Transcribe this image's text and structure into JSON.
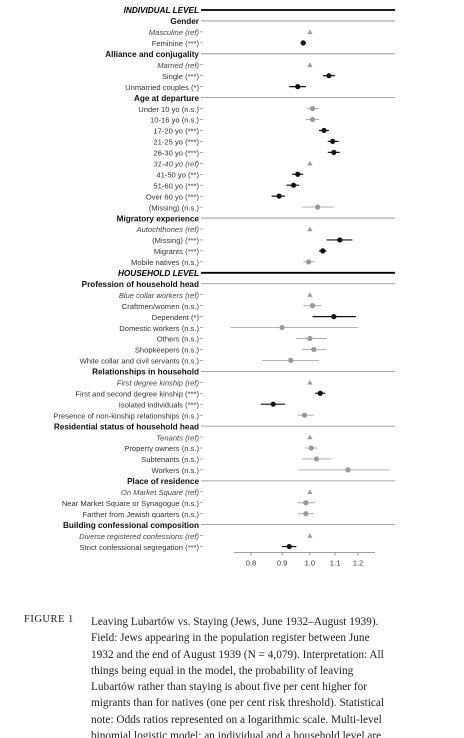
{
  "chart_data": {
    "type": "scatter",
    "xscale": "log",
    "xlim": [
      0.75,
      1.35
    ],
    "xticks": [
      "0.8",
      "0.9",
      "1.0",
      "1.1",
      "1.2"
    ],
    "grid": false,
    "rows": [
      {
        "label": "INDIVIDUAL LEVEL",
        "kind": "level"
      },
      {
        "label": "Gender",
        "kind": "section"
      },
      {
        "label": "Masculine (ref)",
        "kind": "ref",
        "or": 1.0
      },
      {
        "label": "Feminine (***)",
        "kind": "var",
        "or": 0.975,
        "lo": 0.965,
        "hi": 0.985
      },
      {
        "label": "Alliance and conjugality",
        "kind": "section"
      },
      {
        "label": "Married (ref)",
        "kind": "ref",
        "or": 1.0
      },
      {
        "label": "Single (***)",
        "kind": "var",
        "or": 1.075,
        "lo": 1.05,
        "hi": 1.1
      },
      {
        "label": "Unmarried couples (*)",
        "kind": "var",
        "or": 0.955,
        "lo": 0.925,
        "hi": 0.985
      },
      {
        "label": "Age at departure",
        "kind": "section"
      },
      {
        "label": "Under 10 yo (n.s.)",
        "kind": "var",
        "or": 1.01,
        "lo": 0.99,
        "hi": 1.035
      },
      {
        "label": "10-16 yo (n.s.)",
        "kind": "var",
        "or": 1.01,
        "lo": 0.985,
        "hi": 1.035
      },
      {
        "label": "17-20 yo (***)",
        "kind": "var",
        "or": 1.055,
        "lo": 1.035,
        "hi": 1.075
      },
      {
        "label": "21-25 yo (***)",
        "kind": "var",
        "or": 1.09,
        "lo": 1.07,
        "hi": 1.115
      },
      {
        "label": "26-30 yo (***)",
        "kind": "var",
        "or": 1.095,
        "lo": 1.07,
        "hi": 1.12
      },
      {
        "label": "31-40 yo (ref)",
        "kind": "ref",
        "or": 1.0
      },
      {
        "label": "41-50 yo (**)",
        "kind": "var",
        "or": 0.955,
        "lo": 0.935,
        "hi": 0.975
      },
      {
        "label": "51-60 yo (***)",
        "kind": "var",
        "or": 0.94,
        "lo": 0.915,
        "hi": 0.96
      },
      {
        "label": "Over 60 yo (***)",
        "kind": "var",
        "or": 0.89,
        "lo": 0.865,
        "hi": 0.91
      },
      {
        "label": "(Missing) (n.s.)",
        "kind": "var",
        "or": 1.03,
        "lo": 0.97,
        "hi": 1.095
      },
      {
        "label": "Migratory experience",
        "kind": "section"
      },
      {
        "label": "Autochthones (ref)",
        "kind": "ref",
        "or": 1.0
      },
      {
        "label": "(Missing) (***)",
        "kind": "var",
        "or": 1.12,
        "lo": 1.065,
        "hi": 1.175
      },
      {
        "label": "Migrants (***)",
        "kind": "var",
        "or": 1.05,
        "lo": 1.035,
        "hi": 1.065
      },
      {
        "label": "Mobile natives (n.s.)",
        "kind": "var",
        "or": 0.995,
        "lo": 0.975,
        "hi": 1.02
      },
      {
        "label": "HOUSEHOLD LEVEL",
        "kind": "level"
      },
      {
        "label": "Profession of household head",
        "kind": "section"
      },
      {
        "label": "Blue collar workers (ref)",
        "kind": "ref",
        "or": 1.0
      },
      {
        "label": "Craftmen/women (n.s.)",
        "kind": "var",
        "or": 1.01,
        "lo": 0.975,
        "hi": 1.045
      },
      {
        "label": "Dependent (*)",
        "kind": "var",
        "or": 1.095,
        "lo": 1.01,
        "hi": 1.19
      },
      {
        "label": "Domestic workers (n.s.)",
        "kind": "var",
        "or": 0.9,
        "lo": 0.74,
        "hi": 1.2
      },
      {
        "label": "Others (n.s.)",
        "kind": "var",
        "or": 1.0,
        "lo": 0.95,
        "hi": 1.065
      },
      {
        "label": "Shopkeepers (n.s.)",
        "kind": "var",
        "or": 1.015,
        "lo": 0.97,
        "hi": 1.065
      },
      {
        "label": "White collar and civil servants (n.s.)",
        "kind": "var",
        "or": 0.93,
        "lo": 0.835,
        "hi": 1.035
      },
      {
        "label": "Relationships in household",
        "kind": "section"
      },
      {
        "label": "First degree kinship (ref)",
        "kind": "ref",
        "or": 1.0
      },
      {
        "label": "First and second degree kinship (***)",
        "kind": "var",
        "or": 1.04,
        "lo": 1.02,
        "hi": 1.06
      },
      {
        "label": "Isolated individuals (***)",
        "kind": "var",
        "or": 0.87,
        "lo": 0.83,
        "hi": 0.91
      },
      {
        "label": "Presence of non-kinship relationships (n.s.)",
        "kind": "var",
        "or": 0.98,
        "lo": 0.955,
        "hi": 1.015
      },
      {
        "label": "Residential status of household head",
        "kind": "section"
      },
      {
        "label": "Tenants (ref)",
        "kind": "ref",
        "or": 1.0
      },
      {
        "label": "Property owners (n.s.)",
        "kind": "var",
        "or": 1.005,
        "lo": 0.98,
        "hi": 1.03
      },
      {
        "label": "Subtenants (n.s.)",
        "kind": "var",
        "or": 1.025,
        "lo": 0.97,
        "hi": 1.085
      },
      {
        "label": "Workers (n.s.)",
        "kind": "var",
        "or": 1.155,
        "lo": 0.96,
        "hi": 1.35
      },
      {
        "label": "Place of residence",
        "kind": "section"
      },
      {
        "label": "On Market Square (ref)",
        "kind": "ref",
        "or": 1.0
      },
      {
        "label": "Near Market Square or Synagogue (n.s.)",
        "kind": "var",
        "or": 0.985,
        "lo": 0.955,
        "hi": 1.02
      },
      {
        "label": "Farther from Jewish quarters (n.s.)",
        "kind": "var",
        "or": 0.985,
        "lo": 0.955,
        "hi": 1.015
      },
      {
        "label": "Building confessional composition",
        "kind": "section"
      },
      {
        "label": "Diverse registered confessions (ref)",
        "kind": "ref",
        "or": 1.0
      },
      {
        "label": "Strict confessional segregation (***)",
        "kind": "var",
        "or": 0.925,
        "lo": 0.9,
        "hi": 0.95
      }
    ]
  },
  "caption": {
    "label": "FIGURE 1",
    "text": "Leaving Lubartów vs. Staying (Jews, June 1932–August 1939). Field: Jews appearing in the population register between June 1932 and the end of August 1939 (N = 4,079). Interpretation: All things being equal in the model, the probability of leaving Lubartów rather than staying is about five per cent higher for migrants than for natives (one per cent risk threshold). Statistical note: Odds ratios represented on a logarithmic scale. Multi-level binomial logistic model; an individual and a household level are modelled. Significance thresholds: *** ="
  },
  "colors": {
    "point": "#111111",
    "ref_point": "#9a9a9a",
    "significant_ci": "#111111",
    "nonsignificant_ci": "#a8a8a8",
    "rule": "#888888"
  }
}
